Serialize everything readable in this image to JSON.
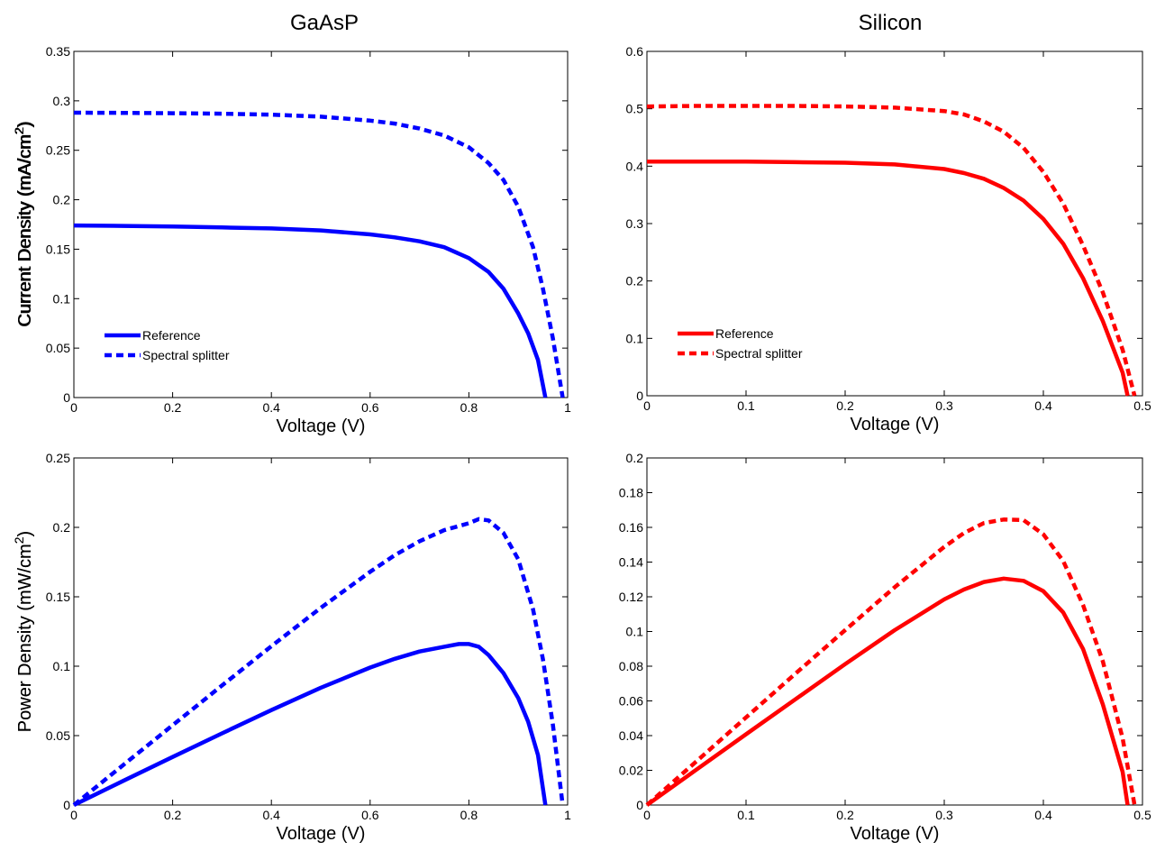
{
  "columns": [
    "GaAsP",
    "Silicon"
  ],
  "chart_data": [
    {
      "type": "line",
      "panel": "GaAsP current",
      "title": "",
      "xlabel": "Voltage (V)",
      "ylabel": "Current Density (mA/cm²)",
      "xlim": [
        0,
        1
      ],
      "ylim": [
        0,
        0.35
      ],
      "xticks": [
        0,
        0.2,
        0.4,
        0.6,
        0.8,
        1
      ],
      "yticks": [
        0,
        0.05,
        0.1,
        0.15,
        0.2,
        0.25,
        0.3,
        0.35
      ],
      "grid": false,
      "legend": "lower-left",
      "color": "#0000ff",
      "series": [
        {
          "name": "Reference",
          "style": "solid",
          "x": [
            0,
            0.1,
            0.2,
            0.3,
            0.4,
            0.5,
            0.6,
            0.65,
            0.7,
            0.75,
            0.8,
            0.84,
            0.87,
            0.9,
            0.92,
            0.94,
            0.955
          ],
          "y": [
            0.174,
            0.1735,
            0.173,
            0.172,
            0.171,
            0.169,
            0.165,
            0.162,
            0.158,
            0.152,
            0.141,
            0.127,
            0.11,
            0.085,
            0.065,
            0.038,
            0
          ]
        },
        {
          "name": "Spectral splitter",
          "style": "dashed",
          "x": [
            0,
            0.1,
            0.2,
            0.3,
            0.4,
            0.5,
            0.6,
            0.65,
            0.7,
            0.75,
            0.8,
            0.84,
            0.87,
            0.9,
            0.93,
            0.95,
            0.97,
            0.99
          ],
          "y": [
            0.288,
            0.2878,
            0.2875,
            0.287,
            0.286,
            0.284,
            0.28,
            0.277,
            0.272,
            0.265,
            0.253,
            0.237,
            0.22,
            0.193,
            0.152,
            0.11,
            0.06,
            0
          ]
        }
      ]
    },
    {
      "type": "line",
      "panel": "Silicon current",
      "title": "",
      "xlabel": "Voltage (V)",
      "ylabel": "Current Density (mA/cm²)",
      "xlim": [
        0,
        0.5
      ],
      "ylim": [
        0,
        0.6
      ],
      "xticks": [
        0,
        0.1,
        0.2,
        0.3,
        0.4,
        0.5
      ],
      "yticks": [
        0,
        0.1,
        0.2,
        0.3,
        0.4,
        0.5,
        0.6
      ],
      "grid": false,
      "legend": "lower-left",
      "color": "#ff0000",
      "series": [
        {
          "name": "Reference",
          "style": "solid",
          "x": [
            0,
            0.05,
            0.1,
            0.15,
            0.2,
            0.25,
            0.3,
            0.32,
            0.34,
            0.36,
            0.38,
            0.4,
            0.42,
            0.44,
            0.46,
            0.48,
            0.485
          ],
          "y": [
            0.408,
            0.408,
            0.408,
            0.407,
            0.406,
            0.403,
            0.395,
            0.388,
            0.378,
            0.362,
            0.34,
            0.308,
            0.265,
            0.205,
            0.13,
            0.04,
            0
          ]
        },
        {
          "name": "Spectral splitter",
          "style": "dashed",
          "x": [
            0,
            0.05,
            0.1,
            0.15,
            0.2,
            0.25,
            0.3,
            0.32,
            0.34,
            0.36,
            0.38,
            0.4,
            0.42,
            0.44,
            0.46,
            0.48,
            0.492
          ],
          "y": [
            0.504,
            0.505,
            0.505,
            0.505,
            0.504,
            0.502,
            0.496,
            0.49,
            0.478,
            0.46,
            0.432,
            0.39,
            0.335,
            0.262,
            0.18,
            0.08,
            0
          ]
        }
      ]
    },
    {
      "type": "line",
      "panel": "GaAsP power",
      "title": "",
      "xlabel": "Voltage (V)",
      "ylabel": "Power Density (mW/cm²)",
      "xlim": [
        0,
        1
      ],
      "ylim": [
        0,
        0.25
      ],
      "xticks": [
        0,
        0.2,
        0.4,
        0.6,
        0.8,
        1
      ],
      "yticks": [
        0,
        0.05,
        0.1,
        0.15,
        0.2,
        0.25
      ],
      "grid": false,
      "legend": "none",
      "color": "#0000ff",
      "series": [
        {
          "name": "Reference",
          "style": "solid",
          "x": [
            0,
            0.1,
            0.2,
            0.3,
            0.4,
            0.5,
            0.6,
            0.65,
            0.7,
            0.75,
            0.78,
            0.8,
            0.82,
            0.84,
            0.87,
            0.9,
            0.92,
            0.94,
            0.955
          ],
          "y": [
            0,
            0.0174,
            0.0346,
            0.0516,
            0.0684,
            0.0845,
            0.099,
            0.1053,
            0.1106,
            0.114,
            0.116,
            0.116,
            0.114,
            0.108,
            0.095,
            0.077,
            0.06,
            0.036,
            0
          ]
        },
        {
          "name": "Spectral splitter",
          "style": "dashed",
          "x": [
            0,
            0.1,
            0.2,
            0.3,
            0.4,
            0.5,
            0.6,
            0.65,
            0.7,
            0.75,
            0.8,
            0.82,
            0.84,
            0.87,
            0.9,
            0.93,
            0.95,
            0.97,
            0.99
          ],
          "y": [
            0,
            0.0288,
            0.0575,
            0.0861,
            0.1144,
            0.142,
            0.168,
            0.18,
            0.19,
            0.198,
            0.203,
            0.206,
            0.205,
            0.196,
            0.177,
            0.141,
            0.105,
            0.058,
            0
          ]
        }
      ]
    },
    {
      "type": "line",
      "panel": "Silicon power",
      "title": "",
      "xlabel": "Voltage (V)",
      "ylabel": "Power Density (mW/cm²)",
      "xlim": [
        0,
        0.5
      ],
      "ylim": [
        0,
        0.2
      ],
      "xticks": [
        0,
        0.1,
        0.2,
        0.3,
        0.4,
        0.5
      ],
      "yticks": [
        0,
        0.02,
        0.04,
        0.06,
        0.08,
        0.1,
        0.12,
        0.14,
        0.16,
        0.18,
        0.2
      ],
      "grid": false,
      "legend": "none",
      "color": "#ff0000",
      "series": [
        {
          "name": "Reference",
          "style": "solid",
          "x": [
            0,
            0.05,
            0.1,
            0.15,
            0.2,
            0.25,
            0.3,
            0.32,
            0.34,
            0.36,
            0.38,
            0.4,
            0.42,
            0.44,
            0.46,
            0.48,
            0.485
          ],
          "y": [
            0,
            0.0204,
            0.0408,
            0.061,
            0.0812,
            0.1008,
            0.1185,
            0.1242,
            0.1285,
            0.1305,
            0.1292,
            0.1232,
            0.111,
            0.09,
            0.058,
            0.019,
            0
          ]
        },
        {
          "name": "Spectral splitter",
          "style": "dashed",
          "x": [
            0,
            0.05,
            0.1,
            0.15,
            0.2,
            0.25,
            0.3,
            0.32,
            0.34,
            0.36,
            0.38,
            0.4,
            0.42,
            0.44,
            0.46,
            0.48,
            0.492
          ],
          "y": [
            0,
            0.0252,
            0.0505,
            0.0758,
            0.1008,
            0.1255,
            0.1488,
            0.1568,
            0.1625,
            0.1645,
            0.1642,
            0.156,
            0.1407,
            0.1153,
            0.0828,
            0.0384,
            0
          ]
        }
      ]
    }
  ]
}
